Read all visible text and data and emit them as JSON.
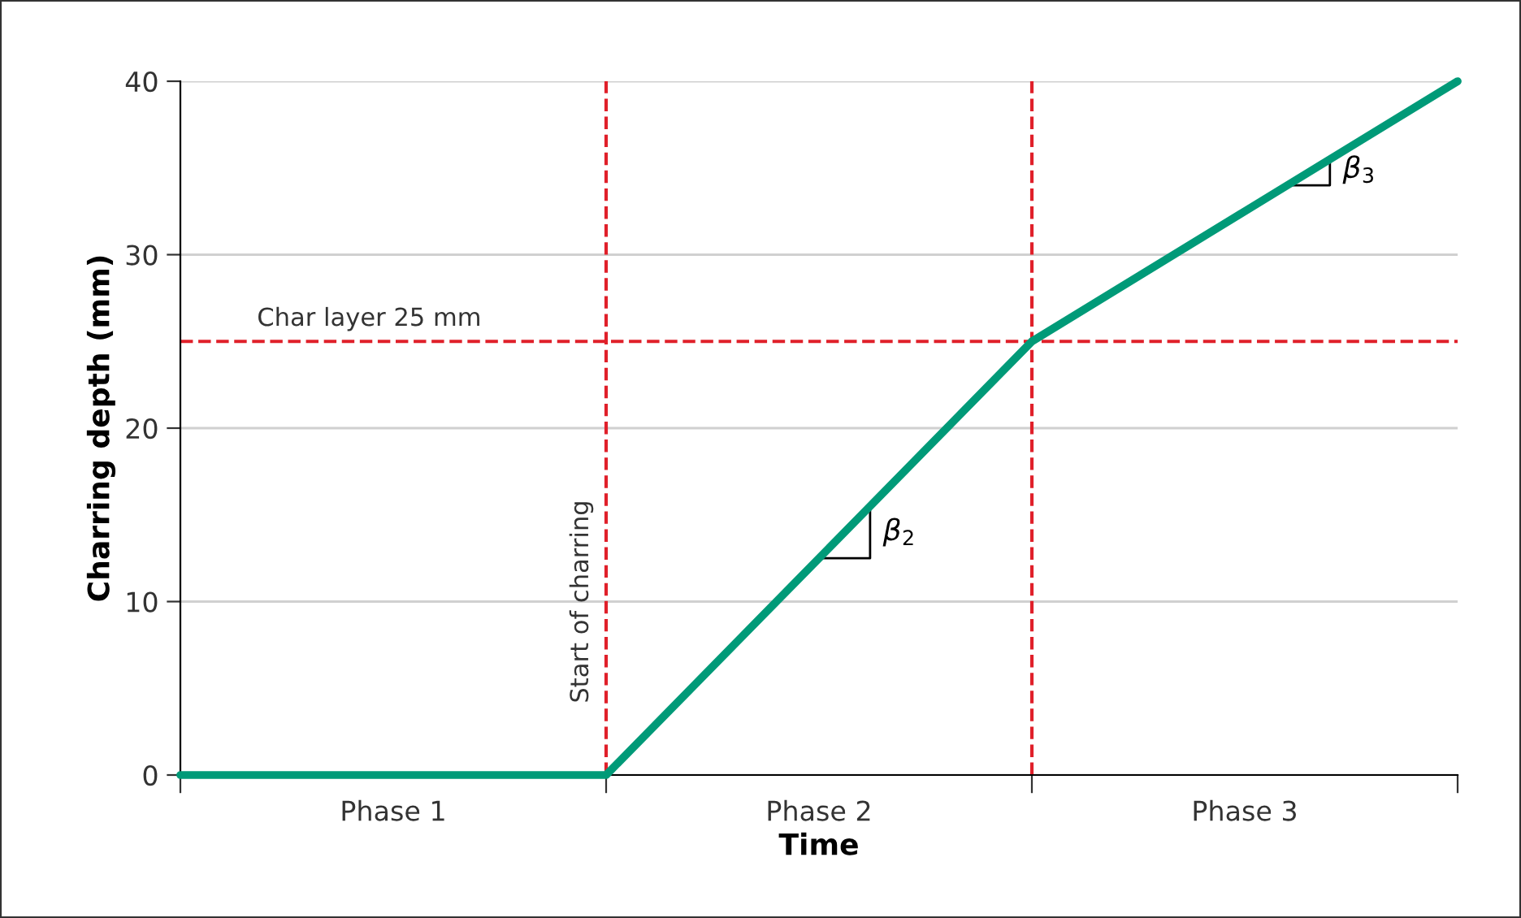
{
  "chart_data": {
    "type": "line",
    "xlabel": "Time",
    "ylabel": "Charring depth (mm)",
    "categories": [
      null,
      null,
      null,
      null
    ],
    "series": [
      {
        "color": "#009a78",
        "values": [
          0,
          0,
          25,
          40
        ]
      }
    ],
    "ylim": [
      0,
      40
    ],
    "yticks": [
      0,
      10,
      20,
      30,
      40
    ],
    "grid": "y",
    "line_style": "solid",
    "marker": "none",
    "ref_lines": [
      {
        "axis": "y",
        "value": 25,
        "label": "Char layer 25 mm",
        "color": "#e0202a",
        "line_style": "dashed"
      }
    ],
    "annotations": [
      "Phase 1",
      "Phase 2",
      "Phase 3",
      "β$_{2}$",
      "β$_{3}$",
      "Start of charring"
    ]
  }
}
